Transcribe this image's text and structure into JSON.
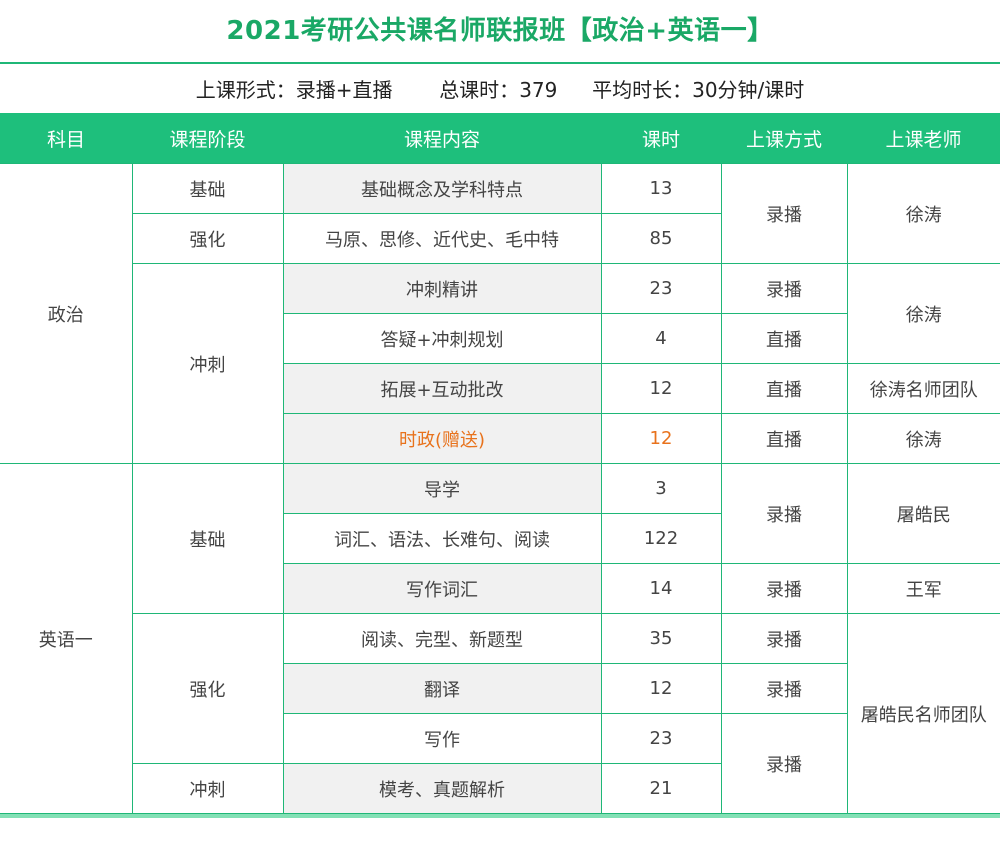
{
  "title": "2021考研公共课名师联报班【政治+英语一】",
  "info": {
    "form_label": "上课形式：",
    "form_value": "录播+直播",
    "total_label": "总课时：",
    "total_value": "379",
    "avg_label": "平均时长：",
    "avg_value": "30分钟/课时"
  },
  "colors": {
    "accent": "#1ebf7c",
    "highlight": "#e8721c",
    "row_gray": "#f1f1f1"
  },
  "headers": [
    "科目",
    "课程阶段",
    "课程内容",
    "课时",
    "上课方式",
    "上课老师"
  ],
  "cells": {
    "politics": "政治",
    "english": "英语一",
    "stage_basic": "基础",
    "stage_strengthen": "强化",
    "stage_sprint": "冲刺",
    "r1_content": "基础概念及学科特点",
    "r1_hours": "13",
    "r2_content": "马原、思修、近代史、毛中特",
    "r2_hours": "85",
    "r12_mode": "录播",
    "r12_teacher": "徐涛",
    "r3_content": "冲刺精讲",
    "r3_hours": "23",
    "r3_mode": "录播",
    "r34_teacher": "徐涛",
    "r4_content": "答疑+冲刺规划",
    "r4_hours": "4",
    "r4_mode": "直播",
    "r5_content": "拓展+互动批改",
    "r5_hours": "12",
    "r5_mode": "直播",
    "r5_teacher": "徐涛名师团队",
    "r6_content": "时政(赠送)",
    "r6_hours": "12",
    "r6_mode": "直播",
    "r6_teacher": "徐涛",
    "r7_content": "导学",
    "r7_hours": "3",
    "r8_content": "词汇、语法、长难句、阅读",
    "r8_hours": "122",
    "r78_mode": "录播",
    "r78_teacher": "屠皓民",
    "r9_content": "写作词汇",
    "r9_hours": "14",
    "r9_mode": "录播",
    "r9_teacher": "王军",
    "r10_content": "阅读、完型、新题型",
    "r10_hours": "35",
    "r10_mode": "录播",
    "r11_content": "翻译",
    "r11_hours": "12",
    "r11_mode": "录播",
    "r12e_content": "写作",
    "r12e_hours": "23",
    "r13_content": "模考、真题解析",
    "r13_hours": "21",
    "r1213_mode": "录播",
    "r10to13_teacher": "屠皓民名师团队"
  }
}
